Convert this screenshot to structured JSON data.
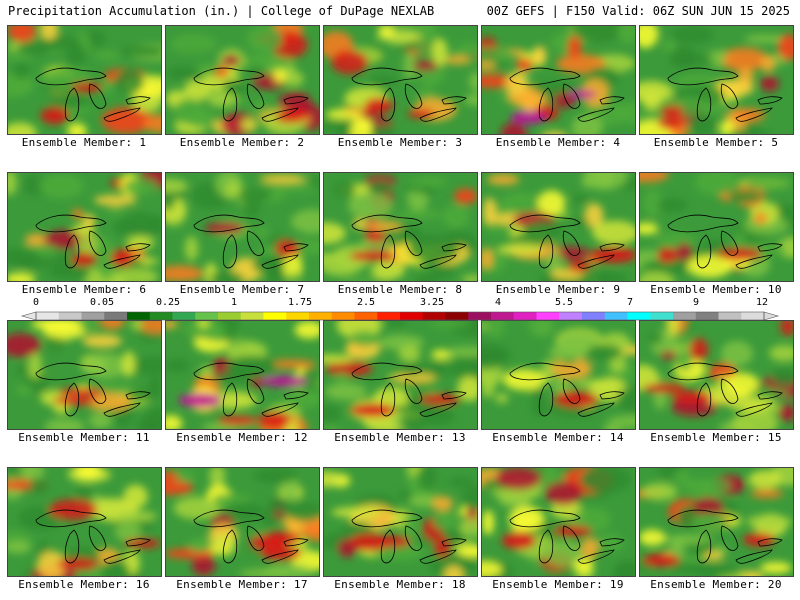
{
  "header": {
    "left": "Precipitation Accumulation (in.) | College of DuPage NEXLAB",
    "right": "00Z GEFS | F150 Valid: 06Z SUN JUN 15 2025"
  },
  "members": [
    {
      "label": "Ensemble Member: 1"
    },
    {
      "label": "Ensemble Member: 2"
    },
    {
      "label": "Ensemble Member: 3"
    },
    {
      "label": "Ensemble Member: 4"
    },
    {
      "label": "Ensemble Member: 5"
    },
    {
      "label": "Ensemble Member: 6"
    },
    {
      "label": "Ensemble Member: 7"
    },
    {
      "label": "Ensemble Member: 8"
    },
    {
      "label": "Ensemble Member: 9"
    },
    {
      "label": "Ensemble Member: 10"
    },
    {
      "label": "Ensemble Member: 11"
    },
    {
      "label": "Ensemble Member: 12"
    },
    {
      "label": "Ensemble Member: 13"
    },
    {
      "label": "Ensemble Member: 14"
    },
    {
      "label": "Ensemble Member: 15"
    },
    {
      "label": "Ensemble Member: 16"
    },
    {
      "label": "Ensemble Member: 17"
    },
    {
      "label": "Ensemble Member: 18"
    },
    {
      "label": "Ensemble Member: 19"
    },
    {
      "label": "Ensemble Member: 20"
    }
  ],
  "colorbar": {
    "tick_labels": [
      "0",
      "0.05",
      "0.25",
      "1",
      "1.75",
      "2.5",
      "3.25",
      "4",
      "5.5",
      "7",
      "9",
      "12"
    ],
    "colors": [
      "#e6e6e6",
      "#c8c8c8",
      "#a0a0a0",
      "#7a7a7a",
      "#006400",
      "#228b22",
      "#32a852",
      "#66c24a",
      "#9acd32",
      "#c8e03c",
      "#ffff00",
      "#ffd700",
      "#ffb000",
      "#ff8c00",
      "#ff6000",
      "#ff2000",
      "#e00000",
      "#b00000",
      "#8b0000",
      "#9b1060",
      "#c01890",
      "#e020c0",
      "#ff40ff",
      "#c080ff",
      "#8080ff",
      "#40c0ff",
      "#00ffff",
      "#40e0d0",
      "#a0a0a0",
      "#808080",
      "#c0c0c0",
      "#dcdcdc"
    ]
  }
}
